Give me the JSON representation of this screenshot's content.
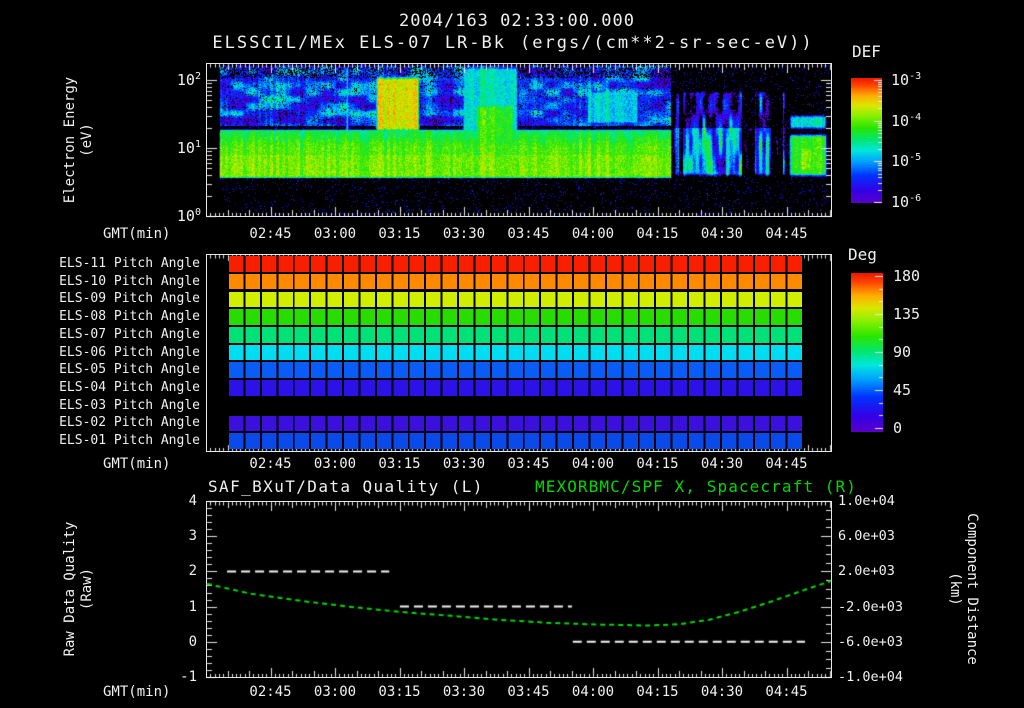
{
  "title": {
    "date_time": "2004/163 02:33:00.000",
    "instrument": "ELSSCIL/MEx ELS-07 LR-Bk",
    "units": "(ergs/(cm**2-sr-sec-eV))"
  },
  "colors": {
    "background": "#000000",
    "text": "#F0F0F0",
    "accent_green": "#00D800",
    "rainbow": [
      [
        0,
        "#5A00C8"
      ],
      [
        0.1,
        "#3300E6"
      ],
      [
        0.22,
        "#0033FF"
      ],
      [
        0.33,
        "#00A0FF"
      ],
      [
        0.42,
        "#00E6DC"
      ],
      [
        0.5,
        "#00E678"
      ],
      [
        0.6,
        "#28E600"
      ],
      [
        0.7,
        "#8CF000"
      ],
      [
        0.78,
        "#DCE600"
      ],
      [
        0.86,
        "#FFAA00"
      ],
      [
        0.94,
        "#FF4600"
      ],
      [
        1,
        "#EE1400"
      ]
    ]
  },
  "time_axis": {
    "label": "GMT(min)",
    "tick_labels": [
      "02:45",
      "03:00",
      "03:15",
      "03:30",
      "03:45",
      "04:00",
      "04:15",
      "04:30",
      "04:45"
    ],
    "start": "02:30",
    "end": "04:55"
  },
  "spectrogram": {
    "ylabel": "Electron Energy",
    "ylabel_units": "(eV)",
    "ytick_base": "10",
    "ytick_exponents": [
      "2",
      "1",
      "0"
    ],
    "colorbar": {
      "title": "DEF",
      "tick_base": "10",
      "tick_exponents": [
        "-3",
        "-4",
        "-5",
        "-6"
      ]
    },
    "chart_data": {
      "type": "heatmap",
      "xlabel": "GMT(min)",
      "x_start": "02:33",
      "x_end": "04:55",
      "y_scale": "log",
      "y_range_eV": [
        1,
        178
      ],
      "flux_range_log10": [
        -6,
        -3
      ],
      "bands": [
        {
          "name": "noise-floor",
          "energy_eV": [
            1,
            3.5
          ],
          "log10_flux": -7.0,
          "t_min": [
            3,
            145
          ]
        },
        {
          "name": "core-plasma-band",
          "energy_eV": [
            3.5,
            20
          ],
          "log10_flux": -4.05,
          "t_min": [
            2.8,
            108.4
          ],
          "profile": "core"
        },
        {
          "name": "suprathermal",
          "energy_eV": [
            20,
            178
          ],
          "log10_flux": -5.35,
          "t_min": [
            2.8,
            108.4
          ],
          "patch_noise": 1.3
        }
      ],
      "features": [
        {
          "name": "bright-column",
          "t_min": [
            32,
            33.5
          ],
          "energy_eV": [
            3.5,
            178
          ],
          "log10_flux": -4.0
        },
        {
          "name": "yellow-green-blob",
          "t_min": [
            39,
            50
          ],
          "energy_eV": [
            16,
            126
          ],
          "log10_flux": -3.6
        },
        {
          "name": "cyan-columns",
          "t_min": [
            59,
            73
          ],
          "energy_eV": [
            10,
            178
          ],
          "log10_flux": -4.65
        },
        {
          "name": "green-blob",
          "t_min": [
            62,
            72
          ],
          "energy_eV": [
            10,
            50
          ],
          "log10_flux": -4.15
        },
        {
          "name": "cyan-blob",
          "t_min": [
            88,
            101
          ],
          "energy_eV": [
            20,
            80
          ],
          "log10_flux": -4.75
        },
        {
          "name": "yellow-spot",
          "t_min": [
            84,
            90
          ],
          "energy_eV": [
            5,
            9
          ],
          "log10_flux": -3.95
        },
        {
          "name": "stripe-region",
          "t_min": [
            108.4,
            135.1
          ],
          "energy_eV": [
            3.5,
            80
          ],
          "log10_flux": -5.05,
          "striped": true
        },
        {
          "name": "dark-gap-1",
          "t_min": [
            124.4,
            127.2
          ],
          "energy_eV": [
            1,
            178
          ],
          "multiplier": 0.1
        },
        {
          "name": "dark-gap-2",
          "t_min": [
            131.4,
            133.7
          ],
          "energy_eV": [
            1,
            178
          ],
          "multiplier": 0.1
        },
        {
          "name": "band-resume",
          "t_min": [
            135.1,
            144.7
          ],
          "energy_eV": [
            3.5,
            18
          ],
          "log10_flux": -4.1
        },
        {
          "name": "resume-bright-spot",
          "t_min": [
            137.5,
            141.5
          ],
          "energy_eV": [
            4,
            12
          ],
          "log10_flux": -3.8
        },
        {
          "name": "resume-cyan-top",
          "t_min": [
            135.1,
            144.7
          ],
          "energy_eV": [
            17,
            35
          ],
          "log10_flux": -4.65
        }
      ]
    }
  },
  "pitch_panel": {
    "rows": [
      {
        "label": "ELS-11 Pitch Angle",
        "color": "#F81E00"
      },
      {
        "label": "ELS-10 Pitch Angle",
        "color": "#FF8A00"
      },
      {
        "label": "ELS-09 Pitch Angle",
        "color": "#D0EE00"
      },
      {
        "label": "ELS-08 Pitch Angle",
        "color": "#28DC00"
      },
      {
        "label": "ELS-07 Pitch Angle",
        "color": "#00E278"
      },
      {
        "label": "ELS-06 Pitch Angle",
        "color": "#00DCF0"
      },
      {
        "label": "ELS-05 Pitch Angle",
        "color": "#0A5CF5"
      },
      {
        "label": "ELS-04 Pitch Angle",
        "color": "#2D12E8"
      },
      {
        "label": "ELS-03 Pitch Angle",
        "color": null
      },
      {
        "label": "ELS-02 Pitch Angle",
        "color": "#3C10DC"
      },
      {
        "label": "ELS-01 Pitch Angle",
        "color": "#0A4AE8"
      }
    ],
    "colorbar": {
      "title": "Deg",
      "ticks": [
        "180",
        "135",
        "90",
        "45",
        "0"
      ]
    }
  },
  "bottom_panel": {
    "title_left": "SAF_BXuT/Data Quality (L)",
    "title_right": "MEXORBMC/SPF X, Spacecraft (R)",
    "ylabel_left": "Raw Data Quality",
    "ylabel_left_units": "(Raw)",
    "ylabel_right": "Component Distance",
    "ylabel_right_units": "(km)",
    "yticks_left": [
      "4",
      "3",
      "2",
      "1",
      "0",
      "-1"
    ],
    "yticks_right": [
      "1.0e+04",
      "6.0e+03",
      "2.0e+03",
      "-2.0e+03",
      "-6.0e+03",
      "-1.0e+04"
    ],
    "chart_data": {
      "type": "line",
      "t_reference": "02:30",
      "ylim_left": [
        -1,
        4
      ],
      "ylim_right": [
        -10000,
        10000
      ],
      "series": [
        {
          "name": "SAF_BXuT/Data Quality",
          "axis": "left",
          "style": "dashed-white",
          "segments": [
            {
              "value": 2,
              "t_start_min": 4.9,
              "t_end_min": 42.6
            },
            {
              "value": 1,
              "t_start_min": 45.1,
              "t_end_min": 85.1
            },
            {
              "value": 0,
              "t_start_min": 85.3,
              "t_end_min": 139.3
            }
          ]
        },
        {
          "name": "MEXORBMC/SPF X, Spacecraft",
          "axis": "right",
          "style": "dashed-green",
          "points_t_min_km": [
            [
              0.2,
              600
            ],
            [
              10,
              -500
            ],
            [
              22,
              -1350
            ],
            [
              34,
              -2050
            ],
            [
              45,
              -2600
            ],
            [
              57,
              -3050
            ],
            [
              68,
              -3500
            ],
            [
              80,
              -3850
            ],
            [
              92,
              -4050
            ],
            [
              103,
              -4150
            ],
            [
              110,
              -4000
            ],
            [
              117,
              -3500
            ],
            [
              124,
              -2600
            ],
            [
              131,
              -1500
            ],
            [
              138,
              -300
            ],
            [
              145.3,
              900
            ]
          ]
        }
      ]
    }
  }
}
